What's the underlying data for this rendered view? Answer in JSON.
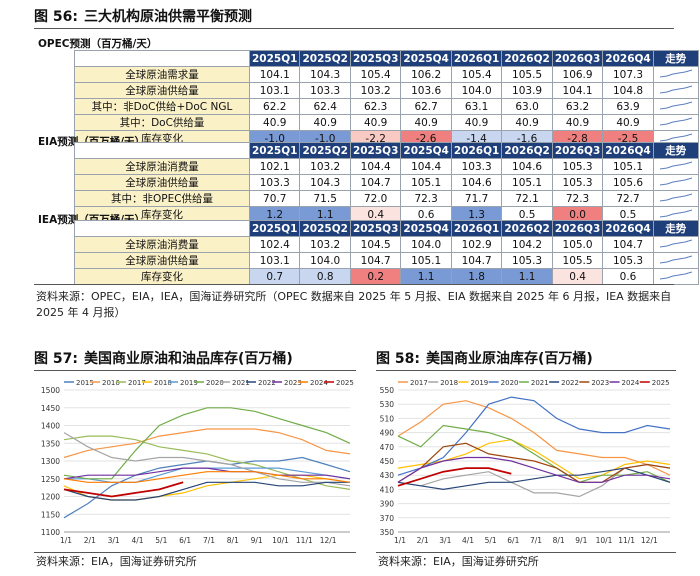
{
  "fig56": {
    "num": "图 56:",
    "title": "三大机构原油供需平衡预测",
    "quarters": [
      "2025Q1",
      "2025Q2",
      "2025Q3",
      "2025Q4",
      "2026Q1",
      "2026Q2",
      "2026Q3",
      "2026Q4"
    ],
    "trend_label": "走势",
    "opec": {
      "label": "OPEC预测（百万桶/天）",
      "rows": [
        {
          "name": "全球原油需求量",
          "values": [
            "104.1",
            "104.3",
            "105.4",
            "106.2",
            "105.4",
            "105.5",
            "106.9",
            "107.3"
          ]
        },
        {
          "name": "全球原油供给量",
          "values": [
            "103.1",
            "103.3",
            "103.2",
            "103.6",
            "104.0",
            "103.9",
            "104.1",
            "104.8"
          ]
        },
        {
          "name": "其中：非DoC供给+DoC NGL",
          "values": [
            "62.2",
            "62.4",
            "62.3",
            "62.7",
            "63.1",
            "63.0",
            "63.2",
            "63.9"
          ]
        },
        {
          "name": "其中：DoC供给量",
          "values": [
            "40.9",
            "40.9",
            "40.9",
            "40.9",
            "40.9",
            "40.9",
            "40.9",
            "40.9"
          ]
        },
        {
          "name": "库存变化",
          "values": [
            "-1.0",
            "-1.0",
            "-2.2",
            "-2.6",
            "-1.4",
            "-1.6",
            "-2.8",
            "-2.5"
          ]
        }
      ]
    },
    "eia": {
      "label": "EIA预测（百万桶/天）",
      "rows": [
        {
          "name": "全球原油消费量",
          "values": [
            "102.1",
            "103.2",
            "104.4",
            "104.4",
            "103.3",
            "104.6",
            "105.3",
            "105.1"
          ]
        },
        {
          "name": "全球原油供给量",
          "values": [
            "103.3",
            "104.3",
            "104.7",
            "105.1",
            "104.6",
            "105.1",
            "105.3",
            "105.6"
          ]
        },
        {
          "name": "其中：非OPEC供给量",
          "values": [
            "70.7",
            "71.5",
            "72.0",
            "72.3",
            "71.7",
            "72.1",
            "72.3",
            "72.7"
          ]
        },
        {
          "name": "库存变化",
          "values": [
            "1.2",
            "1.1",
            "0.4",
            "0.6",
            "1.3",
            "0.5",
            "0.0",
            "0.5"
          ]
        }
      ]
    },
    "iea": {
      "label": "IEA预测（百万桶/天）",
      "rows": [
        {
          "name": "全球原油消费量",
          "values": [
            "102.4",
            "103.2",
            "104.5",
            "104.0",
            "102.9",
            "104.2",
            "105.0",
            "104.7"
          ]
        },
        {
          "name": "全球原油供给量",
          "values": [
            "103.1",
            "104.0",
            "104.7",
            "105.1",
            "104.7",
            "105.3",
            "105.5",
            "105.3"
          ]
        },
        {
          "name": "库存变化",
          "values": [
            "0.7",
            "0.8",
            "0.2",
            "1.1",
            "1.8",
            "1.1",
            "0.4",
            "0.6"
          ]
        }
      ]
    },
    "source": "资料来源：OPEC，EIA，IEA，国海证券研究所（OPEC 数据来自 2025 年 5 月报、EIA 数据来自 2025 年 6 月报，IEA 数据来自 2025 年 4 月报）"
  },
  "colors": {
    "header_bg": "#1f3f7a",
    "label_bg": "#fbf1c7",
    "neg_strong": "#f08080",
    "neg_light": "#f9c9c4",
    "pos_strong": "#7a9ad6",
    "pos_light": "#c9d6ef"
  },
  "fig57": {
    "num": "图 57:",
    "title": "美国商业原油和油品库存(百万桶)",
    "source": "资料来源：EIA，国海证券研究所",
    "chart_data": {
      "type": "line",
      "legend": [
        "2015",
        "2016",
        "2017",
        "2018",
        "2019",
        "2020",
        "2021",
        "2022",
        "2023",
        "2024",
        "2025"
      ],
      "legend_position": "top",
      "x_ticks": [
        "1/1",
        "2/1",
        "3/1",
        "4/1",
        "5/1",
        "6/1",
        "7/1",
        "8/1",
        "9/1",
        "10/1",
        "11/1",
        "12/1"
      ],
      "y_ticks": [
        "1100",
        "1150",
        "1200",
        "1250",
        "1300",
        "1350",
        "1400",
        "1450",
        "1500"
      ],
      "ylim": [
        1100,
        1500
      ],
      "grid": true,
      "series": [
        {
          "name": "2015",
          "color": "#4f81bd",
          "values": [
            1140,
            1180,
            1230,
            1260,
            1280,
            1290,
            1300,
            1290,
            1300,
            1300,
            1310,
            1290,
            1270
          ]
        },
        {
          "name": "2016",
          "color": "#f79646",
          "values": [
            1310,
            1330,
            1340,
            1350,
            1370,
            1380,
            1390,
            1390,
            1390,
            1380,
            1360,
            1330,
            1320
          ]
        },
        {
          "name": "2017",
          "color": "#9bbb59",
          "values": [
            1360,
            1370,
            1370,
            1360,
            1340,
            1330,
            1320,
            1300,
            1290,
            1270,
            1250,
            1230,
            1220
          ]
        },
        {
          "name": "2018",
          "color": "#ffc000",
          "values": [
            1230,
            1200,
            1190,
            1190,
            1200,
            1210,
            1230,
            1240,
            1250,
            1260,
            1260,
            1250,
            1240
          ]
        },
        {
          "name": "2019",
          "color": "#5b9bd5",
          "values": [
            1250,
            1250,
            1240,
            1240,
            1260,
            1280,
            1280,
            1280,
            1280,
            1280,
            1270,
            1260,
            1250
          ]
        },
        {
          "name": "2020",
          "color": "#70ad47",
          "values": [
            1260,
            1250,
            1250,
            1330,
            1400,
            1430,
            1450,
            1450,
            1440,
            1420,
            1400,
            1380,
            1350
          ]
        },
        {
          "name": "2021",
          "color": "#a5a5a5",
          "values": [
            1380,
            1340,
            1310,
            1300,
            1310,
            1310,
            1300,
            1290,
            1270,
            1250,
            1240,
            1240,
            1230
          ]
        },
        {
          "name": "2022",
          "color": "#264478",
          "values": [
            1220,
            1200,
            1190,
            1190,
            1200,
            1220,
            1240,
            1240,
            1240,
            1230,
            1230,
            1240,
            1240
          ]
        },
        {
          "name": "2023",
          "color": "#7030a0",
          "values": [
            1250,
            1260,
            1260,
            1260,
            1270,
            1280,
            1280,
            1270,
            1270,
            1260,
            1260,
            1260,
            1250
          ]
        },
        {
          "name": "2024",
          "color": "#ff7c00",
          "values": [
            1250,
            1240,
            1240,
            1240,
            1250,
            1260,
            1270,
            1270,
            1270,
            1260,
            1250,
            1250,
            1240
          ]
        },
        {
          "name": "2025",
          "color": "#c00000",
          "values": [
            1220,
            1210,
            1200,
            1210,
            1220,
            1240
          ]
        }
      ]
    }
  },
  "fig58": {
    "num": "图 58:",
    "title": "美国商业原油库存(百万桶)",
    "source": "资料来源：EIA，国海证券研究所",
    "chart_data": {
      "type": "line",
      "legend": [
        "2017",
        "2018",
        "2019",
        "2020",
        "2021",
        "2022",
        "2023",
        "2024",
        "2025"
      ],
      "legend_position": "top",
      "x_ticks": [
        "1/1",
        "2/1",
        "3/1",
        "4/1",
        "5/1",
        "6/1",
        "7/1",
        "8/1",
        "9/1",
        "10/1",
        "11/1",
        "12/1"
      ],
      "y_ticks": [
        "350",
        "370",
        "390",
        "410",
        "430",
        "450",
        "470",
        "490",
        "510",
        "530",
        "550"
      ],
      "ylim": [
        350,
        550
      ],
      "grid": true,
      "series": [
        {
          "name": "2017",
          "color": "#f79646",
          "values": [
            485,
            505,
            530,
            535,
            525,
            510,
            490,
            465,
            460,
            455,
            455,
            445,
            430
          ]
        },
        {
          "name": "2018",
          "color": "#a5a5a5",
          "values": [
            420,
            415,
            425,
            430,
            435,
            420,
            405,
            405,
            400,
            415,
            440,
            445,
            440
          ]
        },
        {
          "name": "2019",
          "color": "#ffc000",
          "values": [
            440,
            445,
            450,
            460,
            475,
            480,
            465,
            445,
            425,
            430,
            445,
            450,
            445
          ]
        },
        {
          "name": "2020",
          "color": "#4472c4",
          "values": [
            430,
            440,
            455,
            490,
            530,
            540,
            535,
            510,
            495,
            490,
            490,
            500,
            495
          ]
        },
        {
          "name": "2021",
          "color": "#70ad47",
          "values": [
            485,
            470,
            500,
            495,
            490,
            480,
            460,
            440,
            420,
            430,
            430,
            435,
            420
          ]
        },
        {
          "name": "2022",
          "color": "#264478",
          "values": [
            420,
            415,
            410,
            415,
            420,
            420,
            425,
            430,
            430,
            435,
            440,
            430,
            420
          ]
        },
        {
          "name": "2023",
          "color": "#9e480e",
          "values": [
            420,
            440,
            470,
            475,
            460,
            455,
            450,
            440,
            420,
            420,
            440,
            445,
            440
          ]
        },
        {
          "name": "2024",
          "color": "#7030a0",
          "values": [
            420,
            440,
            450,
            455,
            455,
            450,
            440,
            430,
            420,
            420,
            430,
            430,
            425
          ]
        },
        {
          "name": "2025",
          "color": "#c00000",
          "values": [
            415,
            425,
            435,
            440,
            440,
            432
          ]
        }
      ]
    }
  }
}
